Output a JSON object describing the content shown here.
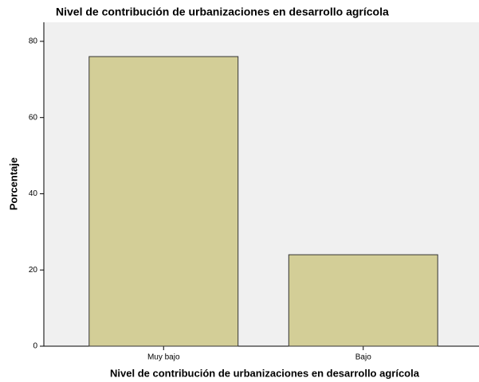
{
  "chart_data": {
    "type": "bar",
    "title": "Nivel de contribución de urbanizaciones en desarrollo agrícola",
    "x_label": "Nivel de contribución de urbanizaciones en desarrollo agrícola",
    "y_label": "Porcentaje",
    "categories": [
      "Muy bajo",
      "Bajo"
    ],
    "values": [
      76,
      24
    ],
    "color": "#d3ce97",
    "ylim": [
      0,
      85
    ],
    "yticks": [
      0,
      20,
      40,
      60,
      80
    ],
    "grid": false
  }
}
